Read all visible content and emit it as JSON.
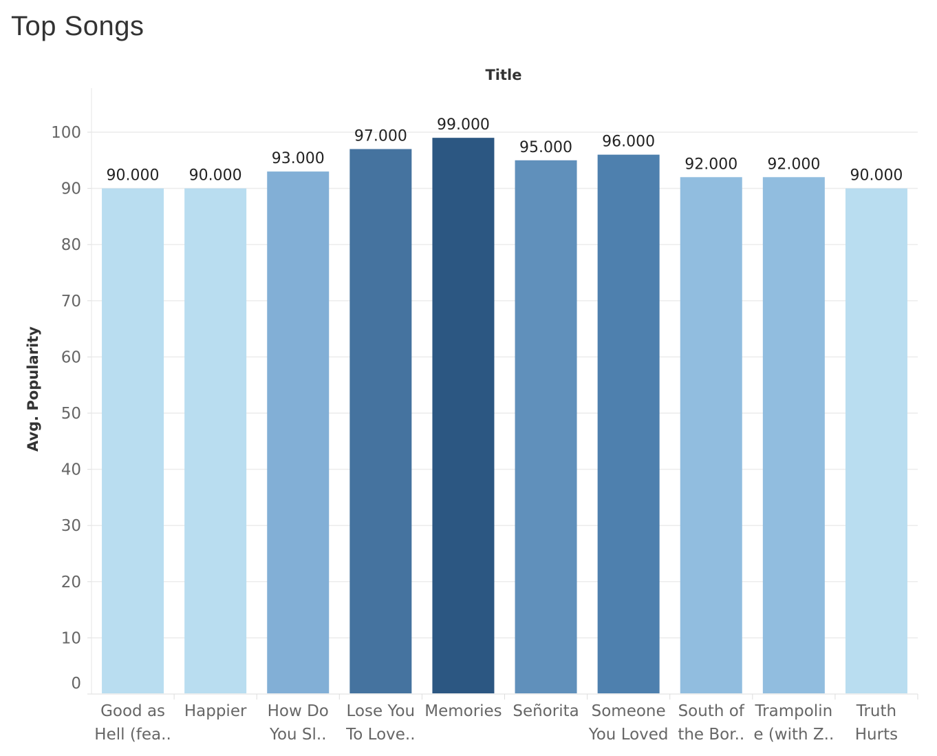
{
  "page_title": "Top Songs",
  "chart_data": {
    "type": "bar",
    "title": "Top Songs",
    "xlabel": "Title",
    "ylabel": "Avg. Popularity",
    "ylim": [
      0,
      100
    ],
    "yticks": [
      0,
      10,
      20,
      30,
      40,
      50,
      60,
      70,
      80,
      90,
      100
    ],
    "grid": true,
    "categories": [
      [
        "Good as",
        "Hell (fea.."
      ],
      [
        "Happier"
      ],
      [
        "How Do",
        "You Sl.."
      ],
      [
        "Lose You",
        "To Love.."
      ],
      [
        "Memories"
      ],
      [
        "Señorita"
      ],
      [
        "Someone",
        "You Loved"
      ],
      [
        "South of",
        "the Bor.."
      ],
      [
        "Trampolin",
        "e (with Z.."
      ],
      [
        "Truth",
        "Hurts"
      ]
    ],
    "values": [
      90,
      90,
      93,
      97,
      99,
      95,
      96,
      92,
      92,
      90
    ],
    "value_labels": [
      "90.000",
      "90.000",
      "93.000",
      "97.000",
      "99.000",
      "95.000",
      "96.000",
      "92.000",
      "92.000",
      "90.000"
    ],
    "colors": [
      "#b9ddf0",
      "#b9ddf0",
      "#82afd6",
      "#45739f",
      "#2c5782",
      "#6090bb",
      "#4e80ae",
      "#91bddf",
      "#91bddf",
      "#b9ddf0"
    ]
  }
}
